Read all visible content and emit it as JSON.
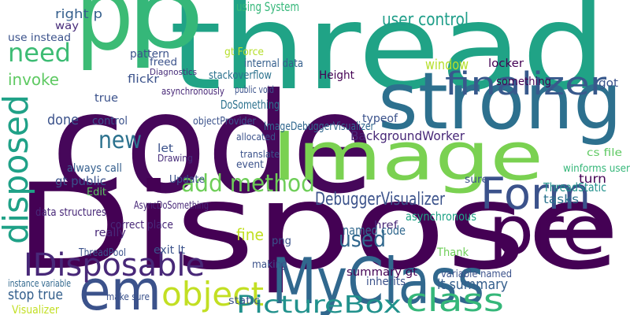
{
  "words": [
    "code",
    "Dispose",
    "thread",
    "p",
    "p",
    "strong",
    "Image",
    "MyClass",
    "pre",
    "em",
    "Form",
    "finalizer",
    "disposed",
    "IDisposable",
    "object",
    "PictureBox",
    "class",
    "new",
    "add method",
    "need",
    "DebuggerVisualizer",
    "used",
    "user control",
    "BackgroundWorker",
    "invoke",
    "right p",
    "way",
    "use instead",
    "window",
    "named code",
    "fine",
    "summary gt",
    "stop true",
    "Visualizer",
    "ThreadPool",
    "ThreadStatic",
    "tasks",
    "Thank",
    "lt summary",
    "variable named",
    "inherits",
    "asynchronous",
    "winforms user",
    "cs file",
    "turn",
    "Height",
    "stackoverflow",
    "DoSomething",
    "objectProvider",
    "ImageDebuggerVisualizer",
    "using System",
    "internal data",
    "public void",
    "Drawing",
    "Update",
    "AsyncDoSomething",
    "data structures",
    "correct place",
    "done",
    "control",
    "always call",
    "gt public",
    "really",
    "exit lt",
    "flickr",
    "Diagnostics",
    "freed",
    "pattern",
    "gt Force",
    "locker",
    "something",
    "got",
    "typeof",
    "instance variable",
    "make sure",
    "static",
    "href",
    "png",
    "making",
    "Edit",
    "event",
    "allocated",
    "translate",
    "let",
    "true",
    "asynchronously",
    "sure"
  ]
}
